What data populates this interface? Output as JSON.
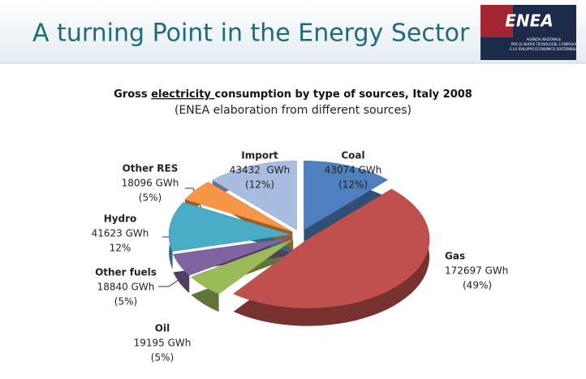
{
  "header": {
    "title": "A turning Point in the Energy Sector",
    "logo": "ENEA",
    "logo_caption": [
      "AGENZIA NAZIONALE",
      "PER LE NUOVE TECNOLOGIE, L'ENERGIA",
      "E LO SVILUPPO ECONOMICO SOSTENIBILE"
    ]
  },
  "chart_data": {
    "type": "pie",
    "title_parts": [
      "Gross ",
      "electricity ",
      "consumption by type of sources, Italy 2008"
    ],
    "subtitle": "(ENEA elaboration from different sources)",
    "categories": [
      "Coal",
      "Gas",
      "Oil",
      "Other fuels",
      "Hydro",
      "Other RES",
      "Import"
    ],
    "values": [
      43074,
      172697,
      19195,
      18840,
      41623,
      18096,
      43432
    ],
    "value_labels": [
      "43074 GWh",
      "172697 GWh",
      "19195 GWh",
      "18840 GWh",
      "41623 GWh",
      "18096 GWh",
      "43432  GWh"
    ],
    "percent_labels": [
      "(12%)",
      "(49%)",
      "(5%)",
      "(5%)",
      "12%",
      "(5%)",
      "(12%)"
    ],
    "colors": [
      "#4f7fbd",
      "#c0504d",
      "#9bbb59",
      "#8064a2",
      "#4bacc6",
      "#f79646",
      "#a9bde0"
    ]
  }
}
